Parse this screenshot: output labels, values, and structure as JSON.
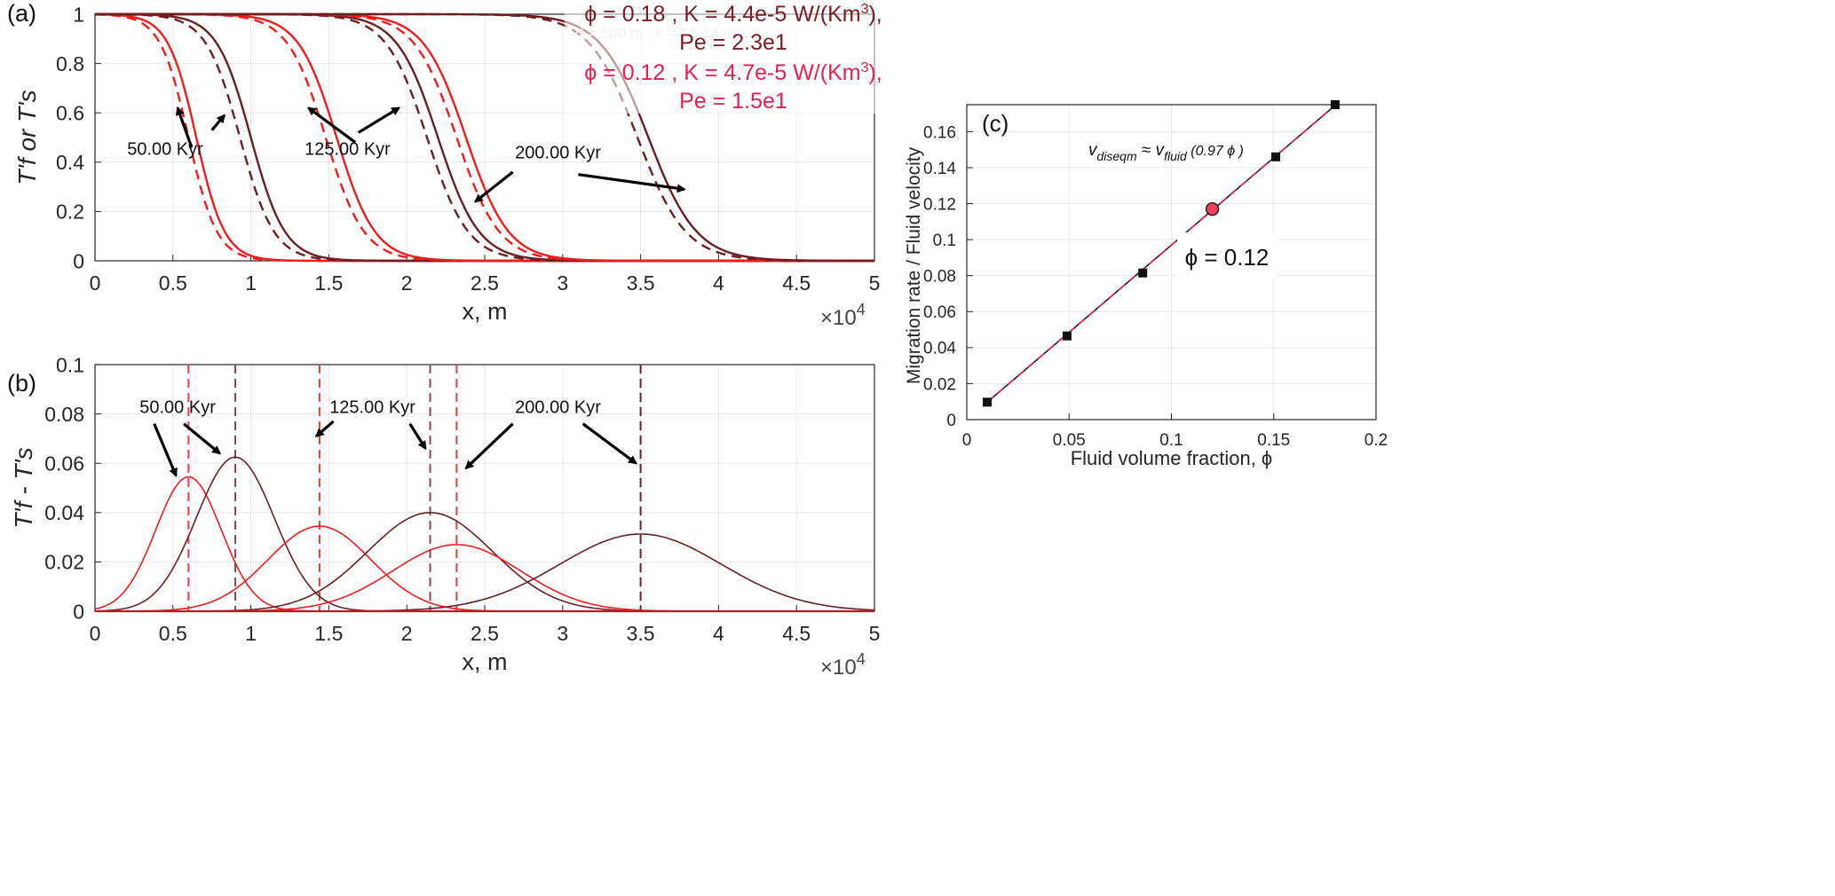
{
  "chart_data": [
    {
      "id": "a",
      "type": "line",
      "panel_label": "(a)",
      "xlabel": "x, m",
      "ylabel": "T'f or T's",
      "x_multiplier": "×10",
      "x_multiplier_exp": "4",
      "xlim": [
        0,
        5
      ],
      "ylim": [
        0,
        1
      ],
      "xticks": [
        "0",
        "0.5",
        "1",
        "1.5",
        "2",
        "2.5",
        "3",
        "3.5",
        "4",
        "4.5",
        "5"
      ],
      "yticks": [
        "0",
        "0.2",
        "0.4",
        "0.6",
        "0.8",
        "1"
      ],
      "legend": [
        {
          "line1": "ϕ = 0.18 , K = 4.4e-5 W/(Km",
          "sup": "3",
          "line1_end": "),",
          "line2": "Pe = 2.3e1",
          "color": "#7b1c22"
        },
        {
          "line1": "ϕ = 0.12 , K = 4.7e-5 W/(Km",
          "sup": "3",
          "line1_end": "),",
          "line2": "Pe = 1.5e1",
          "color": "#e3214e"
        }
      ],
      "ghost_text": "d = 500 m , k = 1e-14 m",
      "series": [
        {
          "color": "#ee1d1d",
          "style": "solid",
          "center": 0.65,
          "width": 0.2
        },
        {
          "color": "#ee1d1d",
          "style": "dashed",
          "center": 0.6,
          "width": 0.2
        },
        {
          "color": "#6b1f23",
          "style": "solid",
          "center": 1.0,
          "width": 0.24
        },
        {
          "color": "#6b1f23",
          "style": "dashed",
          "center": 0.93,
          "width": 0.24
        },
        {
          "color": "#ee1d1d",
          "style": "solid",
          "center": 1.55,
          "width": 0.27
        },
        {
          "color": "#ee1d1d",
          "style": "dashed",
          "center": 1.48,
          "width": 0.27
        },
        {
          "color": "#6b1f23",
          "style": "solid",
          "center": 2.2,
          "width": 0.29
        },
        {
          "color": "#6b1f23",
          "style": "dashed",
          "center": 2.13,
          "width": 0.29
        },
        {
          "color": "#ee1d1d",
          "style": "solid",
          "center": 2.38,
          "width": 0.3
        },
        {
          "color": "#ee1d1d",
          "style": "dashed",
          "center": 2.32,
          "width": 0.3
        },
        {
          "color": "#6b1f23",
          "style": "solid",
          "center": 3.55,
          "width": 0.34
        },
        {
          "color": "#6b1f23",
          "style": "dashed",
          "center": 3.48,
          "width": 0.34
        }
      ],
      "annotations": [
        {
          "text": "50.00 Kyr",
          "x": 0.45,
          "y": 0.455,
          "arrows": [
            [
              0.62,
              0.46,
              0.53,
              0.62
            ],
            [
              0.75,
              0.53,
              0.83,
              0.59
            ]
          ]
        },
        {
          "text": "125.00 Kyr",
          "x": 1.62,
          "y": 0.455,
          "arrows": [
            [
              1.67,
              0.48,
              1.37,
              0.62
            ],
            [
              1.69,
              0.52,
              1.95,
              0.62
            ]
          ]
        },
        {
          "text": "200.00 Kyr",
          "x": 2.97,
          "y": 0.44,
          "arrows": [
            [
              2.68,
              0.36,
              2.44,
              0.24
            ],
            [
              3.1,
              0.35,
              3.78,
              0.29
            ]
          ]
        }
      ]
    },
    {
      "id": "b",
      "type": "line",
      "panel_label": "(b)",
      "xlabel": "x, m",
      "ylabel": "T'f - T's",
      "x_multiplier": "×10",
      "x_multiplier_exp": "4",
      "xlim": [
        0,
        5
      ],
      "ylim": [
        0,
        0.1
      ],
      "xticks": [
        "0",
        "0.5",
        "1",
        "1.5",
        "2",
        "2.5",
        "3",
        "3.5",
        "4",
        "4.5",
        "5"
      ],
      "yticks": [
        "0",
        "0.02",
        "0.04",
        "0.06",
        "0.08",
        "0.1"
      ],
      "series": [
        {
          "color": "#ee1d1d",
          "peak_x": 0.6,
          "peak_y": 0.0545,
          "sigma": 0.21
        },
        {
          "color": "#6b1f23",
          "peak_x": 0.9,
          "peak_y": 0.0625,
          "sigma": 0.25
        },
        {
          "color": "#ee1d1d",
          "peak_x": 1.44,
          "peak_y": 0.0345,
          "sigma": 0.33
        },
        {
          "color": "#6b1f23",
          "peak_x": 2.15,
          "peak_y": 0.04,
          "sigma": 0.4
        },
        {
          "color": "#ee1d1d",
          "peak_x": 2.32,
          "peak_y": 0.027,
          "sigma": 0.41
        },
        {
          "color": "#6b1f23",
          "peak_x": 3.5,
          "peak_y": 0.0313,
          "sigma": 0.52
        }
      ],
      "vlines": [
        {
          "x": 0.6,
          "color": "#ee3b3b"
        },
        {
          "x": 0.9,
          "color": "#8c4a4d"
        },
        {
          "x": 1.44,
          "color": "#ee3b3b"
        },
        {
          "x": 2.15,
          "color": "#8c4a4d"
        },
        {
          "x": 2.32,
          "color": "#ee3b3b"
        },
        {
          "x": 3.5,
          "color": "#6b1f23"
        }
      ],
      "annotations": [
        {
          "text": "50.00 Kyr",
          "x": 0.53,
          "y": 0.083,
          "arrows": [
            [
              0.38,
              0.076,
              0.52,
              0.055
            ],
            [
              0.57,
              0.076,
              0.8,
              0.064
            ]
          ]
        },
        {
          "text": "125.00 Kyr",
          "x": 1.78,
          "y": 0.083,
          "arrows": [
            [
              1.53,
              0.077,
              1.42,
              0.071
            ],
            [
              2.02,
              0.076,
              2.12,
              0.066
            ]
          ]
        },
        {
          "text": "200.00 Kyr",
          "x": 2.97,
          "y": 0.083,
          "arrows": [
            [
              2.68,
              0.076,
              2.38,
              0.058
            ],
            [
              3.13,
              0.076,
              3.47,
              0.06
            ]
          ]
        }
      ]
    },
    {
      "id": "c",
      "type": "scatter",
      "panel_label": "(c)",
      "xlabel": "Fluid volume fraction, ϕ",
      "ylabel": "Migration rate / Fluid velocity",
      "xlim": [
        0,
        0.2
      ],
      "ylim": [
        0,
        0.175
      ],
      "xticks": [
        "0",
        "0.05",
        "0.1",
        "0.15",
        "0.2"
      ],
      "yticks": [
        "0",
        "0.02",
        "0.04",
        "0.06",
        "0.08",
        "0.1",
        "0.12",
        "0.14",
        "0.16"
      ],
      "fit_label": {
        "v1": "v",
        "sub1": "diseqm",
        "approx": " ≈ v",
        "sub2": "fluid",
        "rest": " (0.97 ϕ )"
      },
      "highlight_label": "ϕ = 0.12",
      "points": [
        [
          0.01,
          0.0097
        ],
        [
          0.049,
          0.0465
        ],
        [
          0.086,
          0.0815
        ],
        [
          0.151,
          0.146
        ],
        [
          0.18,
          0.175
        ]
      ],
      "highlight_point": [
        0.12,
        0.117
      ],
      "fit_slope": 0.97,
      "colors": {
        "points": "#111111",
        "fit": "#111111",
        "dashed": "#e3214e",
        "highlight": "#e8415a"
      }
    }
  ]
}
